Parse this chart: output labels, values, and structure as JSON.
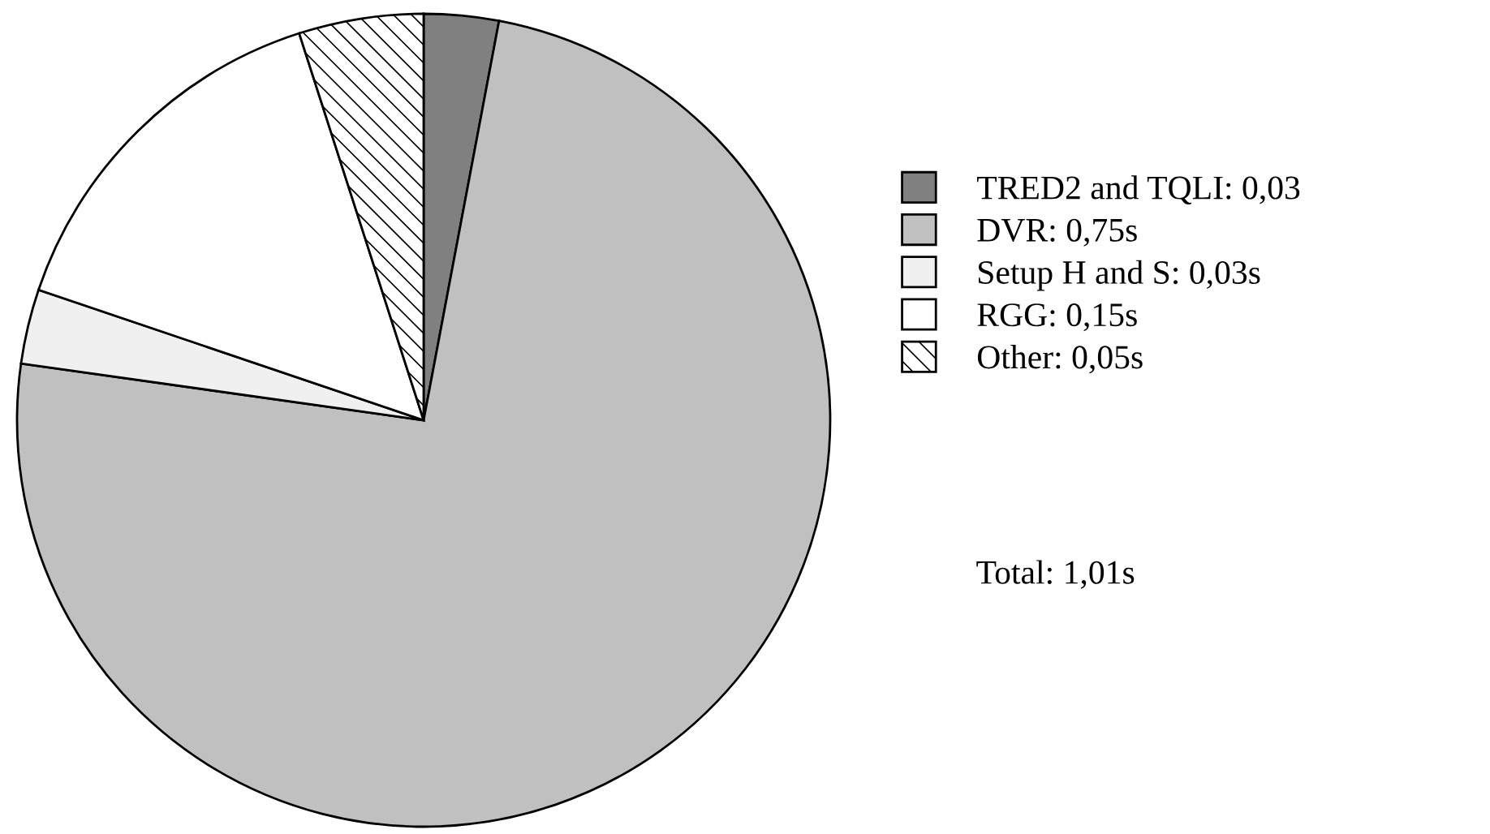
{
  "chart_data": {
    "type": "pie",
    "categories": [
      "TRED2 and TQLI: 0,03",
      "DVR: 0,75s",
      "Setup H and S: 0,03s",
      "RGG: 0,15s",
      "Other: 0,05s"
    ],
    "values": [
      0.03,
      0.75,
      0.03,
      0.15,
      0.05
    ],
    "colors": [
      "#808080",
      "#c0c0c0",
      "#f0f0f0",
      "#ffffff",
      "#ffffff"
    ],
    "legend": "right",
    "annotations": [
      "Total: 1,01s"
    ]
  }
}
